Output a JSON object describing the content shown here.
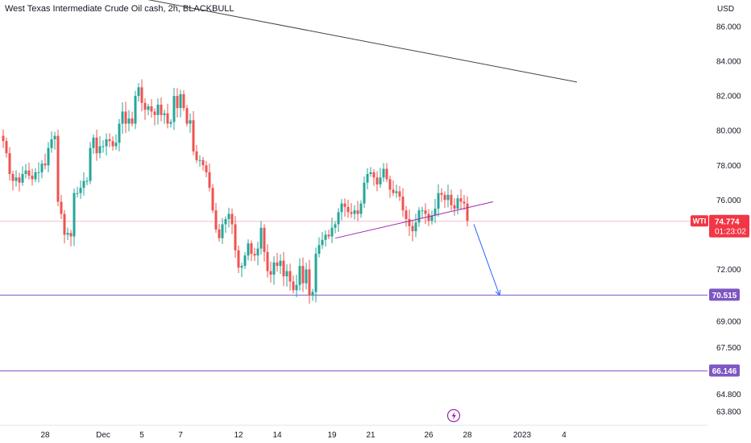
{
  "chart_data": {
    "type": "candlestick",
    "title": "West Texas Intermediate Crude Oil cash, 2h, BLACKBULL",
    "unit": "USD",
    "ylim": [
      62.5,
      87.5
    ],
    "y_axis_labels": [
      {
        "label": "86.000",
        "value": 86.0
      },
      {
        "label": "84.000",
        "value": 84.0
      },
      {
        "label": "82.000",
        "value": 82.0
      },
      {
        "label": "80.000",
        "value": 80.0
      },
      {
        "label": "78.000",
        "value": 78.0
      },
      {
        "label": "76.000",
        "value": 76.0
      },
      {
        "label": "72.000",
        "value": 72.0
      },
      {
        "label": "69.000",
        "value": 69.0
      },
      {
        "label": "67.500",
        "value": 67.5
      },
      {
        "label": "64.800",
        "value": 64.8
      },
      {
        "label": "63.800",
        "value": 63.8
      }
    ],
    "x_axis_labels": [
      "28",
      "Dec",
      "5",
      "7",
      "12",
      "14",
      "19",
      "21",
      "26",
      "28",
      "2023",
      "4"
    ],
    "x_label_bars": [
      13,
      31,
      43,
      55,
      73,
      85,
      102,
      114,
      132,
      144,
      161,
      174
    ],
    "closes": [
      79.4,
      78.7,
      77.5,
      77.1,
      77.3,
      77.0,
      77.5,
      77.7,
      77.4,
      77.2,
      77.6,
      77.6,
      78.1,
      78.0,
      79.0,
      79.5,
      79.7,
      75.9,
      75.2,
      74.0,
      74.1,
      73.9,
      76.4,
      76.4,
      76.7,
      77.1,
      77.1,
      79.0,
      79.6,
      78.7,
      79.1,
      79.1,
      79.5,
      79.4,
      79.1,
      79.3,
      80.4,
      81.1,
      80.4,
      80.7,
      80.4,
      82.0,
      82.5,
      81.6,
      81.2,
      81.4,
      81.1,
      80.9,
      81.5,
      80.9,
      81.0,
      80.4,
      80.5,
      82.0,
      81.3,
      82.1,
      81.3,
      80.4,
      80.6,
      78.8,
      78.3,
      78.3,
      78.0,
      77.6,
      76.7,
      75.4,
      74.3,
      73.8,
      74.6,
      74.9,
      75.2,
      74.6,
      73.1,
      72.1,
      72.2,
      72.8,
      73.5,
      72.9,
      72.8,
      73.2,
      74.4,
      73.0,
      71.9,
      71.7,
      72.4,
      72.2,
      72.5,
      71.6,
      71.9,
      71.3,
      70.8,
      71.1,
      72.2,
      71.2,
      72.0,
      70.5,
      70.7,
      72.9,
      73.4,
      73.7,
      74.0,
      73.9,
      74.4,
      74.6,
      75.3,
      75.8,
      75.6,
      75.3,
      75.2,
      75.4,
      75.2,
      75.8,
      77.0,
      77.5,
      77.6,
      77.3,
      76.9,
      77.3,
      77.8,
      77.2,
      76.6,
      76.4,
      76.5,
      76.2,
      75.4,
      74.9,
      74.5,
      74.2,
      74.7,
      75.4,
      75.4,
      75.2,
      74.8,
      75.1,
      75.5,
      76.4,
      76.3,
      76.0,
      76.3,
      75.7,
      75.5,
      76.1,
      75.9,
      75.8,
      74.8
    ],
    "current_price": {
      "symbol": "WTI",
      "price": "74.774",
      "countdown": "01:23:02",
      "value": 74.774
    },
    "levels": [
      {
        "label": "70.515",
        "value": 70.515
      },
      {
        "label": "66.146",
        "value": 66.146
      }
    ],
    "drawings": {
      "resistance_trendline": {
        "from": {
          "bar": 10,
          "price": 88.8
        },
        "to": {
          "bar": 178,
          "price": 82.8
        }
      },
      "support_trendline": {
        "from": {
          "bar": 103,
          "price": 73.8
        },
        "to": {
          "bar": 152,
          "price": 75.9
        }
      },
      "target_arrow": {
        "from": {
          "bar": 146,
          "price": 74.6
        },
        "to": {
          "bar": 154,
          "price": 70.5
        }
      }
    },
    "colors": {
      "up": "#26a69a",
      "down": "#ef5350",
      "level": "#7e57c2",
      "current_badge": "#f23645",
      "trendline": "#787b86",
      "support_line": "#9c27b0",
      "arrow": "#2962ff",
      "current_line": "#f8bbd0"
    }
  }
}
